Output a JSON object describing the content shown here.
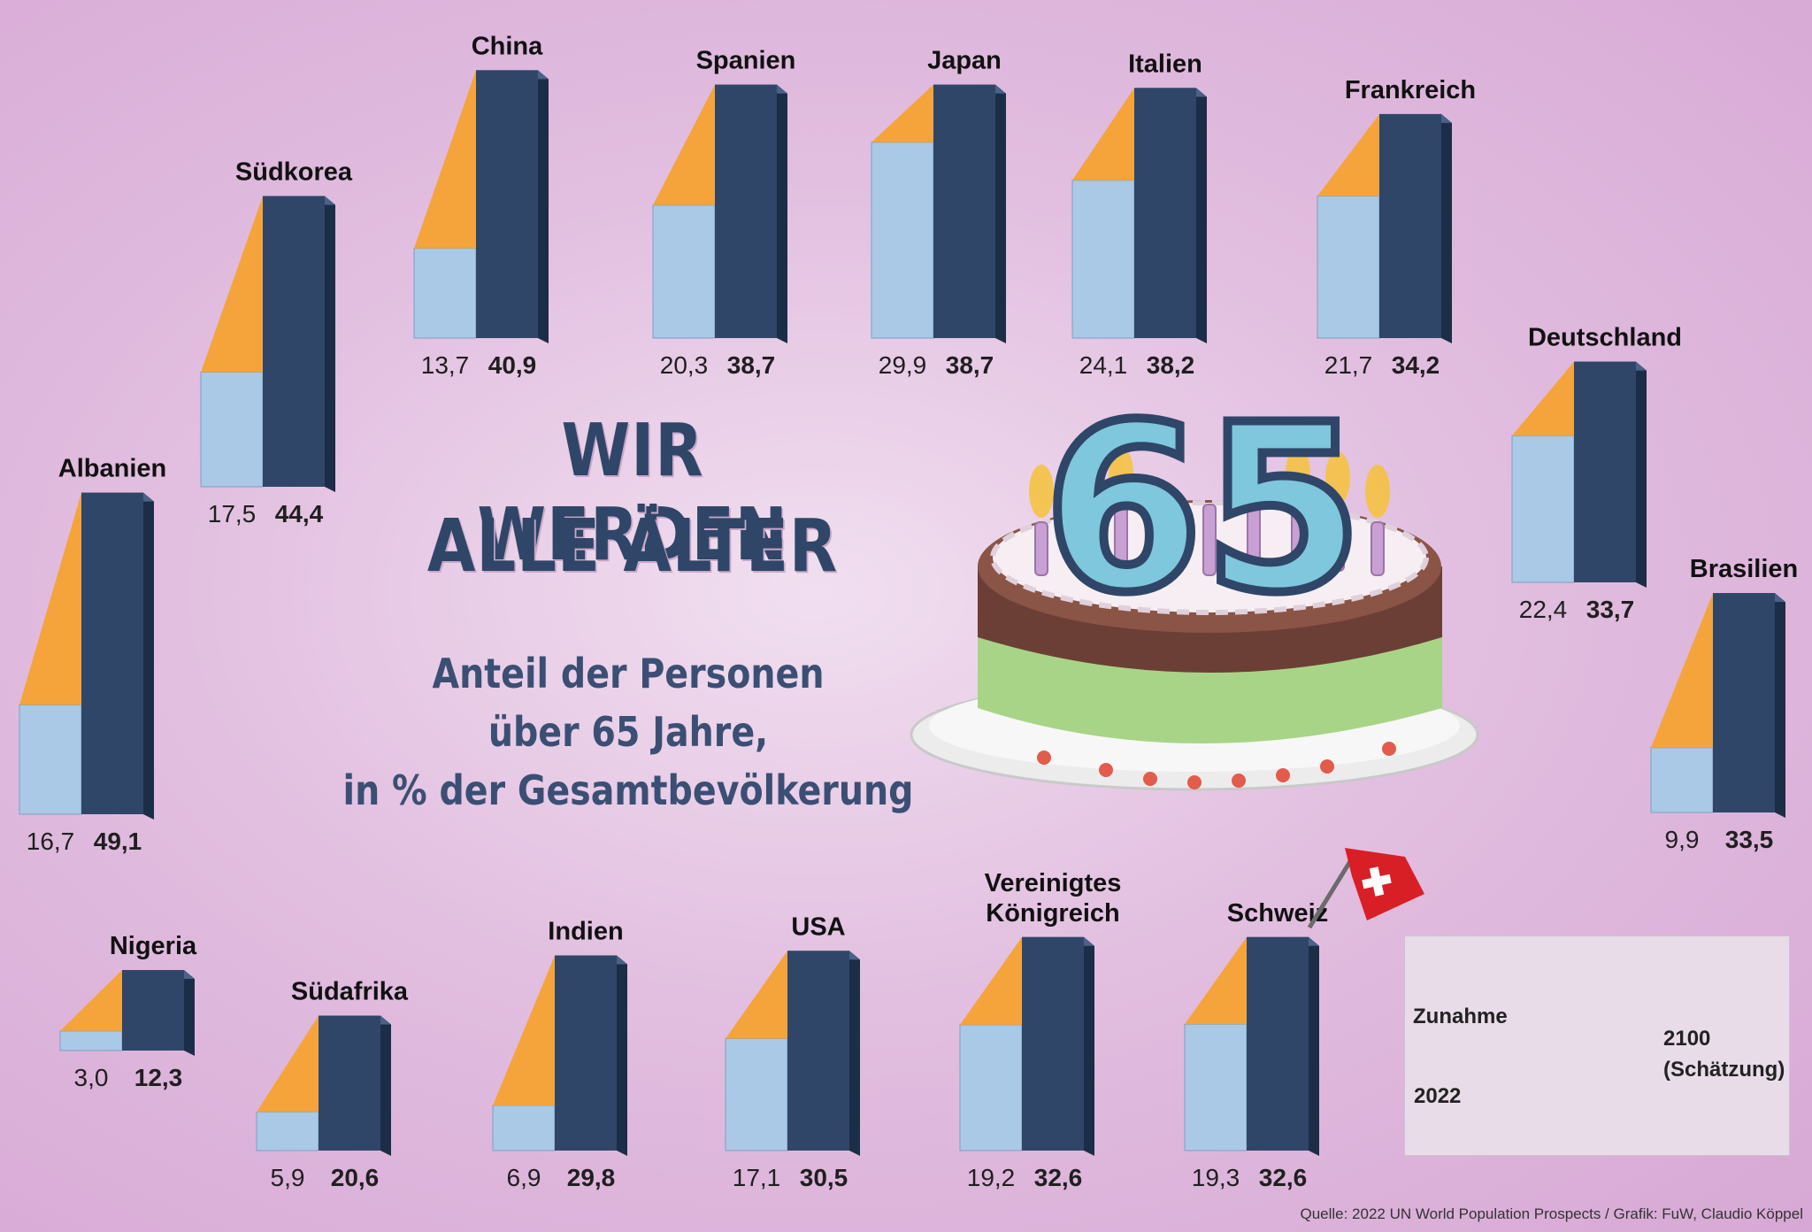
{
  "title": [
    "WIR WERDEN",
    "ALLE ÄLTER"
  ],
  "subtitle": [
    "Anteil der Personen",
    "über 65 Jahre,",
    "in % der Gesamtbevölkerung"
  ],
  "cake_number": "65",
  "source": "Quelle: 2022 UN World Population Prospects / Grafik: FuW, Claudio Köppel",
  "colors": {
    "value_2022": "#a9c9e6",
    "increase": "#f4a43b",
    "value_2100": "#2f4669",
    "text": "#2f4669",
    "flag": "#d81f26"
  },
  "legend": {
    "increase_label": "Zunahme",
    "label_2022": "2022",
    "label_2100_line1": "2100",
    "label_2100_line2": "(Schätzung)"
  },
  "chart_data": {
    "type": "bar",
    "unit": "%",
    "series": [
      {
        "name": "2022",
        "key": "v2022"
      },
      {
        "name": "2100 (Schätzung)",
        "key": "v2100"
      }
    ],
    "countries": [
      {
        "name": "Albanien",
        "v2022": 16.7,
        "v2022_label": "16,7",
        "v2100": 49.1,
        "v2100_label": "49,1"
      },
      {
        "name": "Südkorea",
        "v2022": 17.5,
        "v2022_label": "17,5",
        "v2100": 44.4,
        "v2100_label": "44,4"
      },
      {
        "name": "China",
        "v2022": 13.7,
        "v2022_label": "13,7",
        "v2100": 40.9,
        "v2100_label": "40,9"
      },
      {
        "name": "Spanien",
        "v2022": 20.3,
        "v2022_label": "20,3",
        "v2100": 38.7,
        "v2100_label": "38,7"
      },
      {
        "name": "Japan",
        "v2022": 29.9,
        "v2022_label": "29,9",
        "v2100": 38.7,
        "v2100_label": "38,7"
      },
      {
        "name": "Italien",
        "v2022": 24.1,
        "v2022_label": "24,1",
        "v2100": 38.2,
        "v2100_label": "38,2"
      },
      {
        "name": "Frankreich",
        "v2022": 21.7,
        "v2022_label": "21,7",
        "v2100": 34.2,
        "v2100_label": "34,2"
      },
      {
        "name": "Deutschland",
        "v2022": 22.4,
        "v2022_label": "22,4",
        "v2100": 33.7,
        "v2100_label": "33,7"
      },
      {
        "name": "Brasilien",
        "v2022": 9.9,
        "v2022_label": "9,9",
        "v2100": 33.5,
        "v2100_label": "33,5"
      },
      {
        "name": "Nigeria",
        "v2022": 3.0,
        "v2022_label": "3,0",
        "v2100": 12.3,
        "v2100_label": "12,3"
      },
      {
        "name": "Südafrika",
        "v2022": 5.9,
        "v2022_label": "5,9",
        "v2100": 20.6,
        "v2100_label": "20,6"
      },
      {
        "name": "Indien",
        "v2022": 6.9,
        "v2022_label": "6,9",
        "v2100": 29.8,
        "v2100_label": "29,8"
      },
      {
        "name": "USA",
        "v2022": 17.1,
        "v2022_label": "17,1",
        "v2100": 30.5,
        "v2100_label": "30,5"
      },
      {
        "name": [
          "Vereinigtes",
          "Königreich"
        ],
        "v2022": 19.2,
        "v2022_label": "19,2",
        "v2100": 32.6,
        "v2100_label": "32,6"
      },
      {
        "name": "Schweiz",
        "v2022": 19.3,
        "v2022_label": "19,3",
        "v2100": 32.6,
        "v2100_label": "32,6"
      }
    ]
  }
}
